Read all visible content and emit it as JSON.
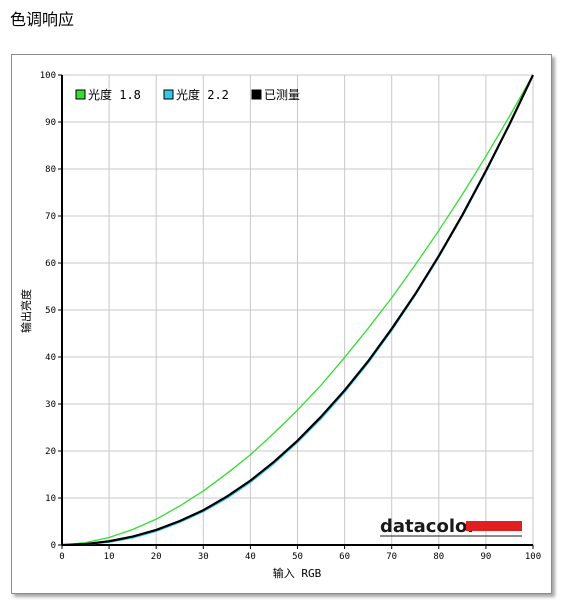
{
  "page": {
    "title": "色调响应"
  },
  "brand": {
    "name": "datacolor",
    "bar_color": "#e02020"
  },
  "chart_data": {
    "type": "line",
    "title": "",
    "xlabel": "输入 RGB",
    "ylabel": "输出亮度",
    "xlim": [
      0,
      100
    ],
    "ylim": [
      0,
      100
    ],
    "x_ticks": [
      0,
      10,
      20,
      30,
      40,
      50,
      60,
      70,
      80,
      90,
      100
    ],
    "y_ticks": [
      0,
      10,
      20,
      30,
      40,
      50,
      60,
      70,
      80,
      90,
      100
    ],
    "grid": true,
    "legend_position": "top-left",
    "series": [
      {
        "name": "光度 1.8",
        "color": "#33dd33",
        "x": [
          0,
          5,
          10,
          15,
          20,
          25,
          30,
          35,
          40,
          45,
          50,
          55,
          60,
          65,
          70,
          75,
          80,
          85,
          90,
          95,
          100
        ],
        "y": [
          0,
          0.5,
          1.6,
          3.3,
          5.5,
          8.3,
          11.5,
          15.2,
          19.2,
          23.8,
          28.7,
          34.0,
          39.9,
          46.1,
          52.6,
          59.6,
          66.9,
          74.6,
          82.7,
          91.2,
          100
        ]
      },
      {
        "name": "光度 2.2",
        "color": "#33c8e8",
        "x": [
          0,
          5,
          10,
          15,
          20,
          25,
          30,
          35,
          40,
          45,
          50,
          55,
          60,
          65,
          70,
          75,
          80,
          85,
          90,
          95,
          100
        ],
        "y": [
          0,
          0.1,
          0.6,
          1.5,
          2.9,
          4.8,
          7.1,
          9.9,
          13.3,
          17.3,
          21.8,
          26.8,
          32.5,
          38.7,
          45.6,
          53.1,
          61.2,
          69.9,
          79.3,
          89.3,
          100
        ]
      },
      {
        "name": "已测量",
        "color": "#000000",
        "x": [
          0,
          5,
          10,
          15,
          20,
          25,
          30,
          35,
          40,
          45,
          50,
          55,
          60,
          65,
          70,
          75,
          80,
          85,
          90,
          95,
          100
        ],
        "y": [
          0,
          0.2,
          0.8,
          1.8,
          3.2,
          5.1,
          7.4,
          10.3,
          13.7,
          17.7,
          22.2,
          27.3,
          32.9,
          39.1,
          46.0,
          53.4,
          61.5,
          70.2,
          79.6,
          89.5,
          100
        ]
      }
    ]
  }
}
